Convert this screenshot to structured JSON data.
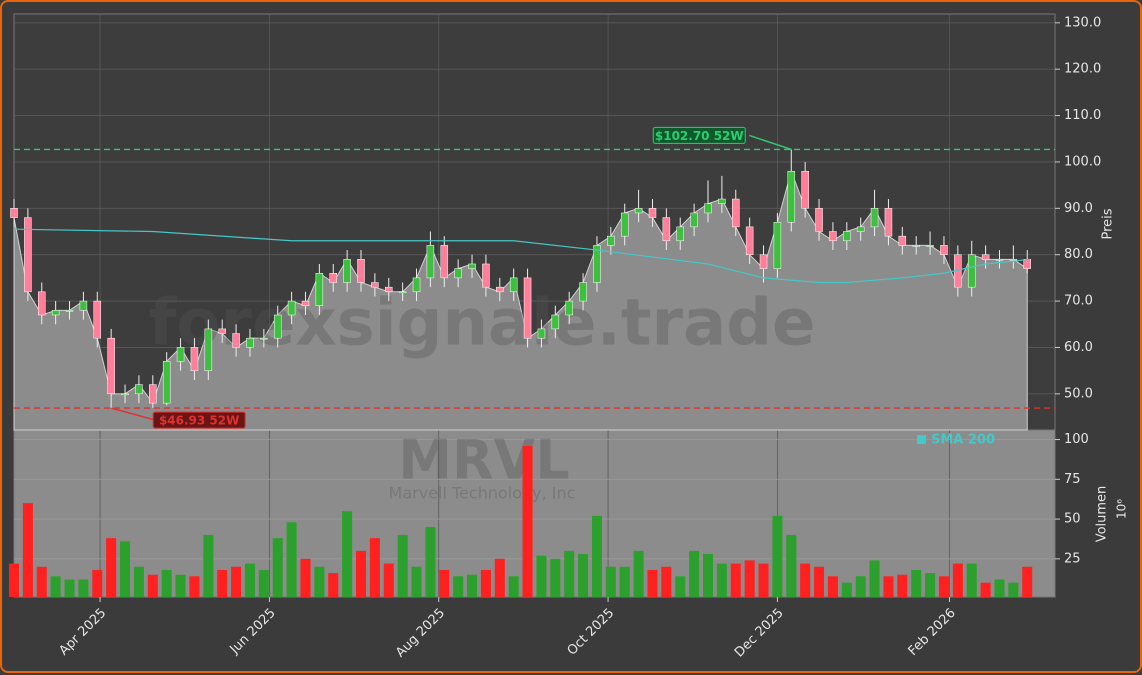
{
  "chart_data": {
    "type": "candlestick",
    "watermark": "forexsignale.trade",
    "symbol": "MRVL",
    "company": "Marvell Technology, Inc",
    "ylabel": "Preis",
    "y2label": "Volumen",
    "y2unit": "10⁶",
    "x": [
      0,
      5,
      10,
      15,
      20,
      25,
      30,
      35,
      40,
      45,
      50,
      55,
      60,
      65,
      70,
      75,
      80,
      85,
      90,
      95,
      100,
      105,
      110,
      115,
      120,
      125,
      130,
      135,
      140,
      145,
      150,
      155,
      160,
      165,
      170,
      175,
      180,
      185,
      190,
      195,
      200,
      205,
      210,
      215,
      220,
      225,
      230,
      235,
      240,
      245,
      250,
      255,
      260,
      265,
      270,
      275,
      280,
      285,
      290,
      295,
      300,
      305,
      310,
      315,
      320,
      325,
      330,
      335,
      340,
      345,
      350,
      355,
      360,
      365
    ],
    "open": [
      90,
      88,
      72,
      67,
      68,
      68,
      70,
      62,
      50,
      50,
      52,
      48,
      57,
      60,
      55,
      64,
      63,
      60,
      62,
      62,
      67,
      70,
      69,
      76,
      74,
      79,
      74,
      73,
      72,
      72,
      75,
      82,
      75,
      77,
      78,
      73,
      72,
      75,
      62,
      64,
      67,
      70,
      74,
      82,
      84,
      89,
      90,
      88,
      83,
      86,
      89,
      91,
      92,
      86,
      80,
      77,
      87,
      98,
      90,
      85,
      83,
      85,
      86,
      90,
      84,
      82,
      82,
      82,
      80,
      73,
      80,
      79,
      79,
      79
    ],
    "high": [
      92,
      90,
      74,
      70,
      70,
      72,
      72,
      64,
      52,
      54,
      54,
      59,
      62,
      62,
      66,
      66,
      65,
      64,
      64,
      69,
      72,
      72,
      78,
      78,
      81,
      81,
      76,
      75,
      74,
      77,
      85,
      84,
      79,
      80,
      80,
      75,
      77,
      77,
      66,
      69,
      72,
      76,
      84,
      86,
      91,
      94,
      92,
      90,
      88,
      91,
      96,
      97,
      94,
      88,
      82,
      89,
      102.7,
      100,
      92,
      87,
      87,
      88,
      94,
      92,
      86,
      84,
      85,
      84,
      82,
      83,
      82,
      81,
      82,
      81
    ],
    "low": [
      86,
      70,
      65,
      65,
      66,
      66,
      60,
      46.93,
      48,
      48,
      47,
      47.5,
      55,
      53,
      53,
      61,
      58,
      58,
      60,
      60,
      65,
      67,
      67,
      72,
      72,
      72,
      71,
      70,
      70,
      70,
      73,
      73,
      73,
      75,
      71,
      70,
      70,
      60,
      60,
      62,
      65,
      68,
      72,
      80,
      82,
      87,
      86,
      81,
      81,
      84,
      87,
      89,
      84,
      78,
      74,
      75,
      85,
      88,
      83,
      81,
      81,
      83,
      84,
      82,
      80,
      80,
      80,
      78,
      71,
      71,
      77,
      77,
      77,
      76
    ],
    "close": [
      88,
      72,
      67,
      68,
      68,
      70,
      62,
      50,
      50,
      52,
      48,
      57,
      60,
      55,
      64,
      63,
      60,
      62,
      62,
      67,
      70,
      69,
      76,
      74,
      79,
      74,
      73,
      72,
      72,
      75,
      82,
      75,
      77,
      78,
      73,
      72,
      75,
      62,
      64,
      67,
      70,
      74,
      82,
      84,
      89,
      90,
      88,
      83,
      86,
      89,
      91,
      92,
      86,
      80,
      77,
      87,
      98,
      90,
      85,
      83,
      85,
      86,
      90,
      84,
      82,
      82,
      82,
      80,
      73,
      80,
      79,
      79,
      79,
      77
    ],
    "volume": [
      22,
      60,
      20,
      14,
      12,
      12,
      18,
      38,
      36,
      20,
      15,
      18,
      15,
      14,
      40,
      18,
      20,
      22,
      18,
      38,
      48,
      25,
      20,
      16,
      55,
      30,
      38,
      22,
      40,
      20,
      45,
      18,
      14,
      15,
      18,
      25,
      14,
      96,
      27,
      25,
      30,
      28,
      52,
      20,
      20,
      30,
      18,
      20,
      14,
      30,
      28,
      22,
      22,
      24,
      22,
      52,
      40,
      22,
      20,
      14,
      10,
      14,
      24,
      14,
      15,
      18,
      16,
      14,
      22,
      22,
      10,
      12,
      10,
      20
    ],
    "up_color": "#2ca02c",
    "down_color": "#ff2020",
    "area_color": "#8c8c8c",
    "sma": {
      "name": "SMA 200",
      "color": "#45c8c8",
      "x": [
        0,
        50,
        100,
        150,
        180,
        210,
        250,
        270,
        290,
        300,
        320,
        335,
        350,
        366
      ],
      "values": [
        85.5,
        85,
        83,
        83,
        83,
        81,
        78,
        75,
        74,
        74,
        75,
        76,
        78,
        79
      ]
    },
    "annotations": [
      {
        "label": "$102.70 52W",
        "value": 102.7,
        "x": 280,
        "color": "#2ecc71"
      },
      {
        "label": "$46.93 52W",
        "value": 46.93,
        "x": 35,
        "color": "#e03030"
      }
    ],
    "xlim": [
      0,
      375
    ],
    "xticks": [
      {
        "value": 31,
        "label": "Apr 2025"
      },
      {
        "value": 92,
        "label": "Jun 2025"
      },
      {
        "value": 153,
        "label": "Aug 2025"
      },
      {
        "value": 214,
        "label": "Oct 2025"
      },
      {
        "value": 275,
        "label": "Dec 2025"
      },
      {
        "value": 337,
        "label": "Feb 2026"
      }
    ],
    "ylim": [
      42.2,
      131.9
    ],
    "yticks": [
      {
        "value": 50,
        "label": "50.0"
      },
      {
        "value": 60,
        "label": "60.0"
      },
      {
        "value": 70,
        "label": "70.0"
      },
      {
        "value": 80,
        "label": "80.0"
      },
      {
        "value": 90,
        "label": "90.0"
      },
      {
        "value": 100,
        "label": "100.0"
      },
      {
        "value": 110,
        "label": "110.0"
      },
      {
        "value": 120,
        "label": "120.0"
      },
      {
        "value": 130,
        "label": "130.0"
      }
    ],
    "y2lim": [
      1,
      106
    ],
    "y2ticks": [
      25,
      50,
      75,
      100
    ],
    "grid": true
  }
}
